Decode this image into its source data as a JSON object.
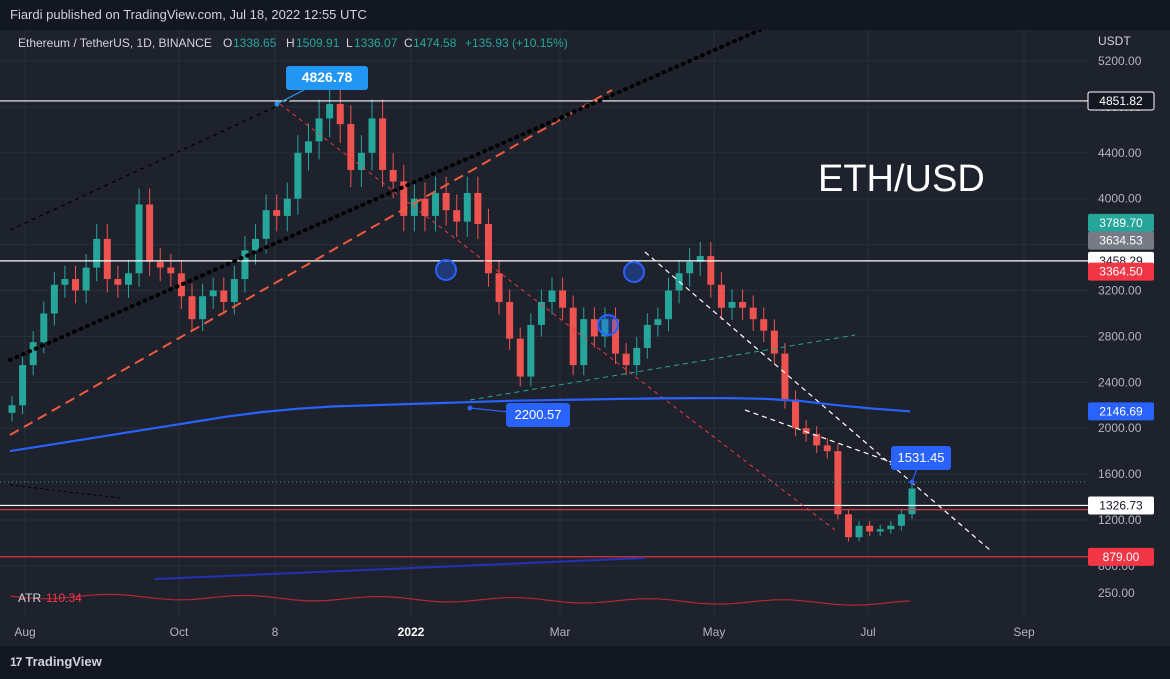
{
  "header": {
    "published": "Fiardi published on TradingView.com, Jul 18, 2022 12:55 UTC"
  },
  "footer": {
    "brand": "TradingView",
    "brand_glyph": "17"
  },
  "chart_data": {
    "type": "candlestick",
    "symbol": "Ethereum / TetherUS, 1D, BINANCE",
    "ohlc": {
      "O_label": "O",
      "O": "1338.65",
      "H_label": "H",
      "H": "1509.91",
      "L_label": "L",
      "L": "1336.07",
      "C_label": "C",
      "C": "1474.58",
      "change": "+135.93 (+10.15%)"
    },
    "title_annotation": "ETH/USD",
    "currency": "USDT",
    "y_ticks": [
      "5200.00",
      "4800.00",
      "4400.00",
      "4000.00",
      "3600.00",
      "3200.00",
      "2800.00",
      "2400.00",
      "2000.00",
      "1600.00",
      "1200.00",
      "800.00"
    ],
    "x_ticks": [
      "Aug",
      "Oct",
      "8",
      "2022",
      "Mar",
      "May",
      "Jul",
      "Sep"
    ],
    "ylim": [
      250,
      5400
    ],
    "price_labels": [
      {
        "text": "4851.82",
        "price": 4851.82,
        "bg": "#131722",
        "fg": "#ffffff",
        "border": "#ffffff"
      },
      {
        "text": "3789.70",
        "price": 3789.7,
        "bg": "#26a69a",
        "fg": "#ffffff"
      },
      {
        "text": "3634.53",
        "price": 3634.53,
        "bg": "#787b86",
        "fg": "#ffffff"
      },
      {
        "text": "3458.29",
        "price": 3458.29,
        "bg": "#ffffff",
        "fg": "#131722"
      },
      {
        "text": "3364.50",
        "price": 3364.5,
        "bg": "#f23645",
        "fg": "#ffffff"
      },
      {
        "text": "2146.69",
        "price": 2146.69,
        "bg": "#2962ff",
        "fg": "#ffffff"
      },
      {
        "text": "1326.73",
        "price": 1326.73,
        "bg": "#ffffff",
        "fg": "#131722"
      },
      {
        "text": "879.00",
        "price": 879.0,
        "bg": "#f23645",
        "fg": "#ffffff"
      }
    ],
    "callouts": [
      {
        "text": "4826.78",
        "price": 4826.78,
        "date": "Nov 10 2021"
      },
      {
        "text": "2200.57",
        "price": 2200.57,
        "date": "Jan 24 2022"
      },
      {
        "text": "1531.45",
        "price": 1531.45,
        "date": "Jul 18 2022"
      }
    ],
    "horizontal_levels": [
      {
        "price": 4851.82,
        "color": "#ffffff"
      },
      {
        "price": 3458.29,
        "color": "#ffffff"
      },
      {
        "price": 1326.73,
        "color": "#ffffff"
      },
      {
        "price": 1290,
        "color": "#f23645"
      },
      {
        "price": 879,
        "color": "#f23645"
      }
    ],
    "candles_closes": [
      2200,
      2550,
      2750,
      3000,
      3250,
      3300,
      3200,
      3400,
      3650,
      3300,
      3250,
      3350,
      3950,
      3450,
      3400,
      3350,
      3150,
      2950,
      3150,
      3200,
      3100,
      3300,
      3550,
      3650,
      3900,
      3850,
      4000,
      4400,
      4500,
      4700,
      4826,
      4650,
      4250,
      4400,
      4700,
      4250,
      4150,
      3850,
      4000,
      3850,
      4050,
      3900,
      3800,
      4050,
      3780,
      3350,
      3100,
      2780,
      2450,
      2900,
      3100,
      3200,
      3050,
      2550,
      2950,
      2800,
      2950,
      2650,
      2550,
      2700,
      2900,
      2950,
      3200,
      3350,
      3450,
      3500,
      3250,
      3050,
      3100,
      3050,
      2950,
      2850,
      2650,
      2250,
      2000,
      1950,
      1850,
      1800,
      1250,
      1050,
      1150,
      1100,
      1120,
      1150,
      1250,
      1475
    ],
    "ma_line": [
      1800,
      1850,
      1900,
      1950,
      2000,
      2050,
      2100,
      2140,
      2170,
      2190,
      2200,
      2210,
      2220,
      2230,
      2240,
      2245,
      2250,
      2255,
      2260,
      2262,
      2262,
      2255,
      2235,
      2200,
      2170,
      2146.69
    ],
    "atr": {
      "label": "ATR",
      "value": "110.34",
      "scale": "250.00"
    }
  }
}
